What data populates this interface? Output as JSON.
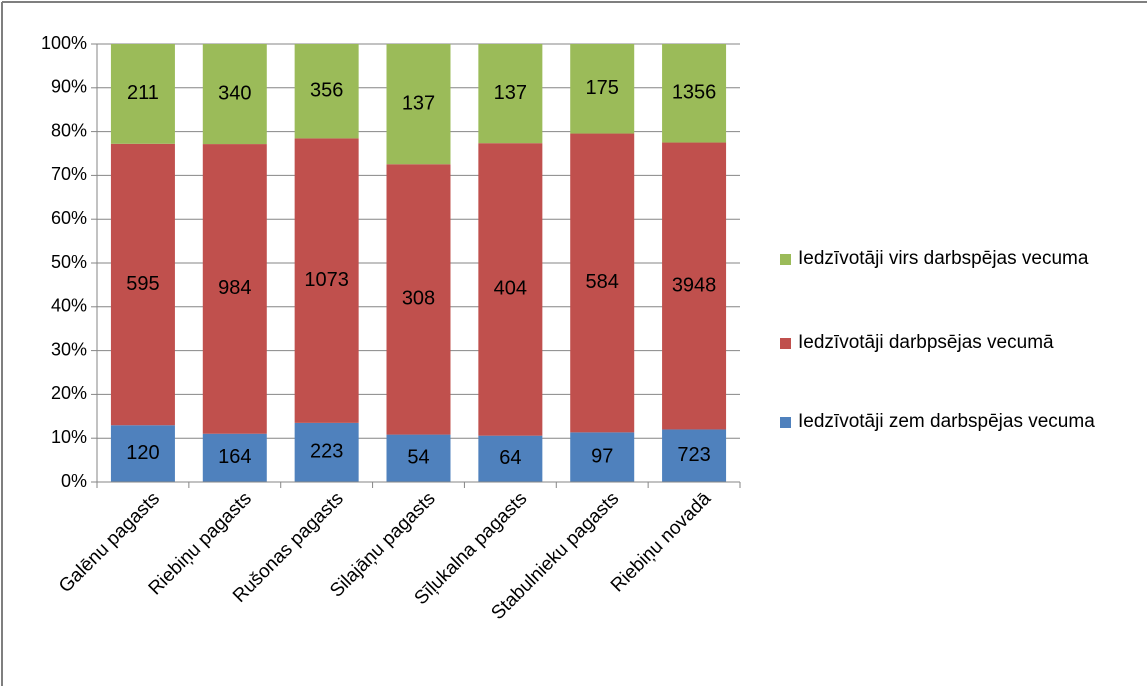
{
  "chart_data": {
    "type": "bar",
    "stacking": "percent",
    "categories": [
      "Galēnu pagasts",
      "Riebiņu pagasts",
      "Rušonas pagasts",
      "Silajāņu pagasts",
      "Sīļukalna pagasts",
      "Stabulnieku pagasts",
      "Riebiņu novadā"
    ],
    "series": [
      {
        "name": "Iedzīvotāji zem darbspējas vecuma",
        "color": "#4f81bd",
        "values": [
          120,
          164,
          223,
          54,
          64,
          97,
          723
        ]
      },
      {
        "name": "Iedzīvotāji darbpsējas vecumā",
        "color": "#c0504d",
        "values": [
          595,
          984,
          1073,
          308,
          404,
          584,
          3948
        ]
      },
      {
        "name": "Iedzīvotāji virs darbspējas vecuma",
        "color": "#9bbb59",
        "values": [
          211,
          340,
          356,
          137,
          137,
          175,
          1356
        ]
      }
    ],
    "ylim": [
      0,
      100
    ],
    "yticks": [
      {
        "value": 0,
        "label": "0%"
      },
      {
        "value": 10,
        "label": "10%"
      },
      {
        "value": 20,
        "label": "20%"
      },
      {
        "value": 30,
        "label": "30%"
      },
      {
        "value": 40,
        "label": "40%"
      },
      {
        "value": 50,
        "label": "50%"
      },
      {
        "value": 60,
        "label": "60%"
      },
      {
        "value": 70,
        "label": "70%"
      },
      {
        "value": 80,
        "label": "80%"
      },
      {
        "value": 90,
        "label": "90%"
      },
      {
        "value": 100,
        "label": "100%"
      }
    ],
    "grid": true,
    "legend": "right"
  }
}
